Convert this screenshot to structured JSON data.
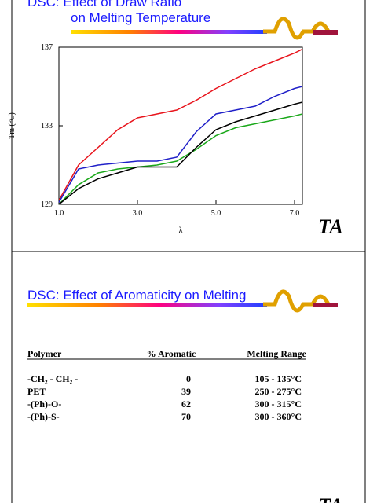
{
  "chart_data": {
    "type": "line",
    "title": [
      "DSC: Effect of Draw Ratio",
      "on Melting Temperature"
    ],
    "x_label": "λ",
    "y_label": "Tm (°C)",
    "x": [
      1.0,
      1.5,
      2.0,
      2.5,
      3.0,
      3.5,
      4.0,
      4.5,
      5.0,
      5.5,
      6.0,
      6.5,
      7.0,
      7.2
    ],
    "series": [
      {
        "color": "#e8141c",
        "values": [
          129.2,
          131.0,
          131.9,
          132.8,
          133.4,
          133.6,
          133.8,
          134.3,
          134.9,
          135.4,
          135.9,
          136.3,
          136.7,
          136.9
        ]
      },
      {
        "color": "#1f1fc8",
        "values": [
          129.1,
          130.8,
          131.0,
          131.1,
          131.2,
          131.2,
          131.4,
          132.7,
          133.6,
          133.8,
          134.0,
          134.5,
          134.9,
          135.0
        ]
      },
      {
        "color": "#1aa81a",
        "values": [
          129.0,
          130.0,
          130.6,
          130.8,
          130.9,
          131.0,
          131.2,
          131.8,
          132.5,
          132.9,
          133.1,
          133.3,
          133.5,
          133.6
        ]
      },
      {
        "color": "#000000",
        "values": [
          129.0,
          129.8,
          130.3,
          130.6,
          130.9,
          130.9,
          130.9,
          131.9,
          132.8,
          133.2,
          133.5,
          133.8,
          134.1,
          134.2
        ]
      }
    ],
    "xlim": [
      1.0,
      7.2
    ],
    "ylim": [
      129,
      137
    ],
    "xticks": [
      {
        "value": 1,
        "label": "1.0"
      },
      {
        "value": 3,
        "label": "3.0"
      },
      {
        "value": 5,
        "label": "5.0"
      },
      {
        "value": 7,
        "label": "7.0"
      }
    ],
    "yticks": [
      129,
      133,
      137
    ]
  },
  "logo": "TA",
  "aromaticity": {
    "title": "DSC: Effect of Aromaticity on Melting",
    "header": [
      "Polymer",
      "% Aromatic",
      "Melting Range"
    ],
    "rows": [
      [
        "-CH₂ - CH₂ -",
        0,
        "105 - 135°C"
      ],
      [
        "PET",
        39,
        "250 - 275°C"
      ],
      [
        "-(Ph)-O-",
        62,
        "300 - 315°C"
      ],
      [
        "-(Ph)-S-",
        70,
        "300 - 360°C"
      ]
    ]
  }
}
